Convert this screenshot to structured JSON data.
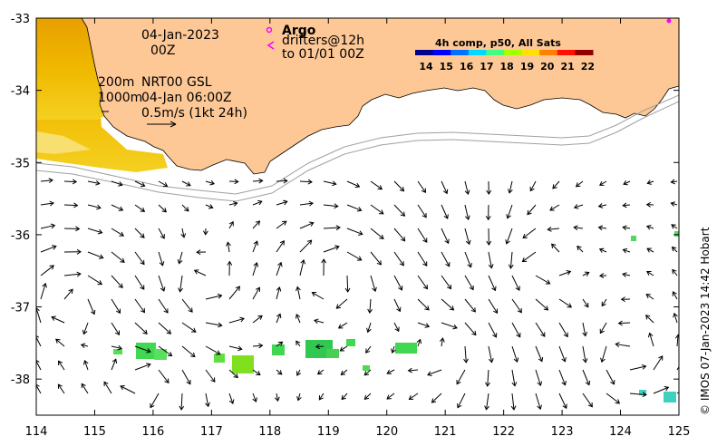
{
  "map": {
    "lon_range": [
      114,
      125
    ],
    "lat_range": [
      -38.5,
      -33
    ],
    "x_ticks": [
      "114",
      "115",
      "116",
      "117",
      "118",
      "119",
      "120",
      "121",
      "122",
      "123",
      "124",
      "125"
    ],
    "y_ticks": [
      "-33",
      "-34",
      "-35",
      "-36",
      "-37",
      "-38"
    ],
    "land_color": "#fdc896",
    "coastline_color": "#000000",
    "isobath_color": "#a0a0a0"
  },
  "annotations": {
    "date_line1": "04-Jan-2023",
    "date_line2": "00Z",
    "isobath_200": "200m",
    "isobath_1000": "1000m",
    "current_source": "NRT00 GSL",
    "current_time": "04-Jan 06:00Z",
    "scale_label": "0.5m/s (1kt 24h)"
  },
  "argo": {
    "title": "Argo",
    "line1": "drifters@12h",
    "line2": "to 01/01 00Z",
    "marker_color": "#ff00ff"
  },
  "colorbar": {
    "title": "4h comp, p50, All Sats",
    "labels": [
      "14",
      "15",
      "16",
      "17",
      "18",
      "19",
      "20",
      "21",
      "22"
    ],
    "colors": [
      "#00008f",
      "#0000ff",
      "#0070ff",
      "#00d8ff",
      "#40ff80",
      "#a8ff00",
      "#ffe000",
      "#ff8000",
      "#ff1000",
      "#900000"
    ]
  },
  "copyright": "© IMOS 07-Jan-2023 14:42 Hobart"
}
